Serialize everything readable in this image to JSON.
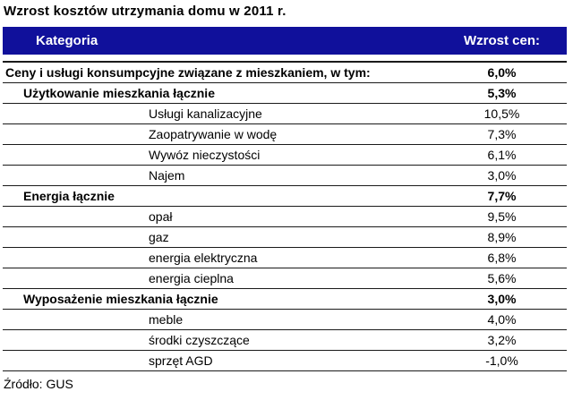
{
  "colors": {
    "header_bg": "#10109B",
    "header_text": "#FFFFFF",
    "row_line": "#1A1A1A",
    "text": "#000000",
    "background": "#FFFFFF"
  },
  "chart_data": {
    "type": "table",
    "title": "Wzrost kosztów utrzymania domu w 2011 r.",
    "columns": [
      "Kategoria",
      "Wzrost cen:"
    ],
    "unit": "%",
    "source": "Źródło: GUS",
    "rows": [
      {
        "category": "Ceny i usługi konsumpcyjne związane z mieszkaniem, w tym:",
        "growth_pct": 6.0,
        "display": "6,0%",
        "indent_level": 1
      },
      {
        "category": "Użytkowanie mieszkania łącznie",
        "growth_pct": 5.3,
        "display": "5,3%",
        "indent_level": 2
      },
      {
        "category": "Usługi kanalizacyjne",
        "growth_pct": 10.5,
        "display": "10,5%",
        "indent_level": 3
      },
      {
        "category": "Zaopatrywanie w wodę",
        "growth_pct": 7.3,
        "display": "7,3%",
        "indent_level": 3
      },
      {
        "category": "Wywóz nieczystości",
        "growth_pct": 6.1,
        "display": "6,1%",
        "indent_level": 3
      },
      {
        "category": "Najem",
        "growth_pct": 3.0,
        "display": "3,0%",
        "indent_level": 3
      },
      {
        "category": "Energia łącznie",
        "growth_pct": 7.7,
        "display": "7,7%",
        "indent_level": 2
      },
      {
        "category": "opał",
        "growth_pct": 9.5,
        "display": "9,5%",
        "indent_level": 3
      },
      {
        "category": "gaz",
        "growth_pct": 8.9,
        "display": "8,9%",
        "indent_level": 3
      },
      {
        "category": "energia elektryczna",
        "growth_pct": 6.8,
        "display": "6,8%",
        "indent_level": 3
      },
      {
        "category": "energia cieplna",
        "growth_pct": 5.6,
        "display": "5,6%",
        "indent_level": 3
      },
      {
        "category": "Wyposażenie mieszkania łącznie",
        "growth_pct": 3.0,
        "display": "3,0%",
        "indent_level": 2
      },
      {
        "category": "meble",
        "growth_pct": 4.0,
        "display": "4,0%",
        "indent_level": 3
      },
      {
        "category": "środki czyszczące",
        "growth_pct": 3.2,
        "display": "3,2%",
        "indent_level": 3
      },
      {
        "category": "sprzęt AGD",
        "growth_pct": -1.0,
        "display": "-1,0%",
        "indent_level": 3
      }
    ]
  }
}
